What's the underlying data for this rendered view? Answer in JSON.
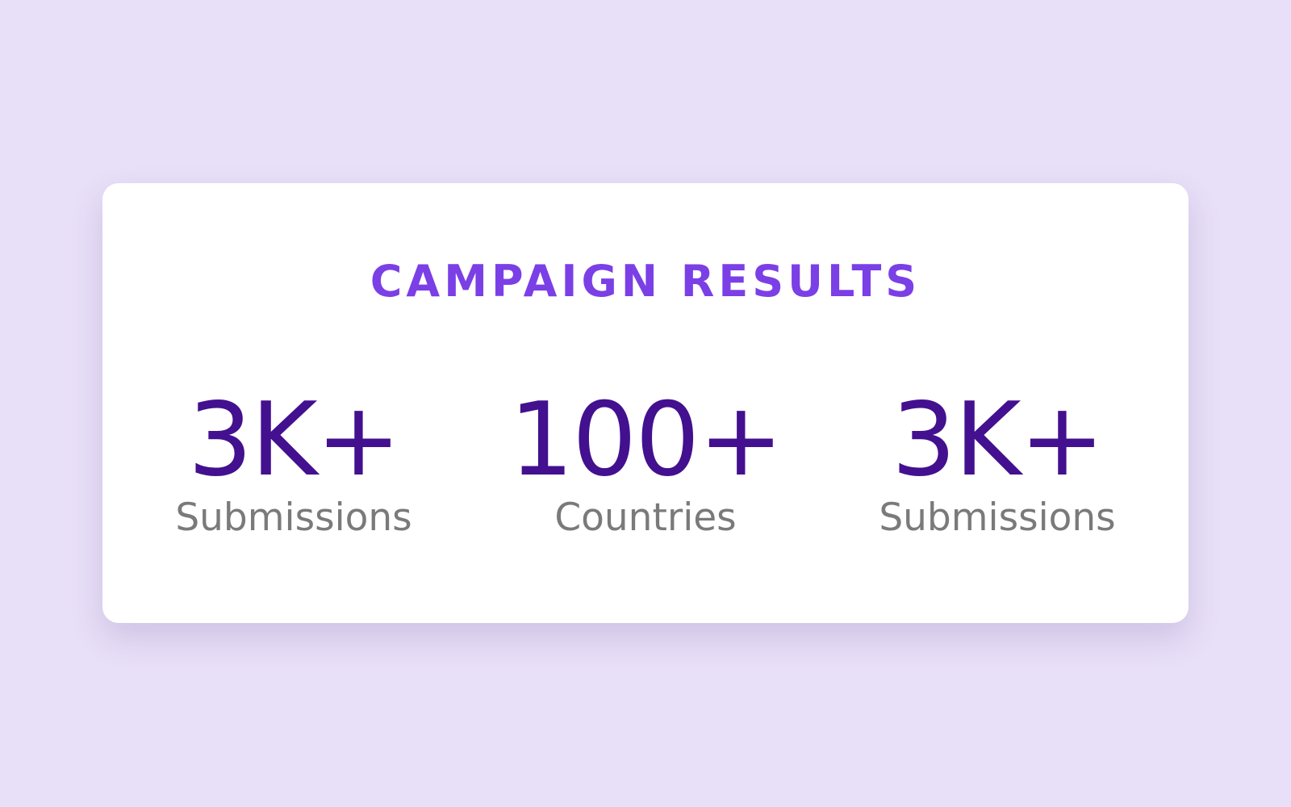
{
  "header": {
    "title": "CAMPAIGN RESULTS"
  },
  "stats": [
    {
      "value": "3K+",
      "label": "Submissions"
    },
    {
      "value": "100+",
      "label": "Countries"
    },
    {
      "value": "3K+",
      "label": "Submissions"
    }
  ]
}
